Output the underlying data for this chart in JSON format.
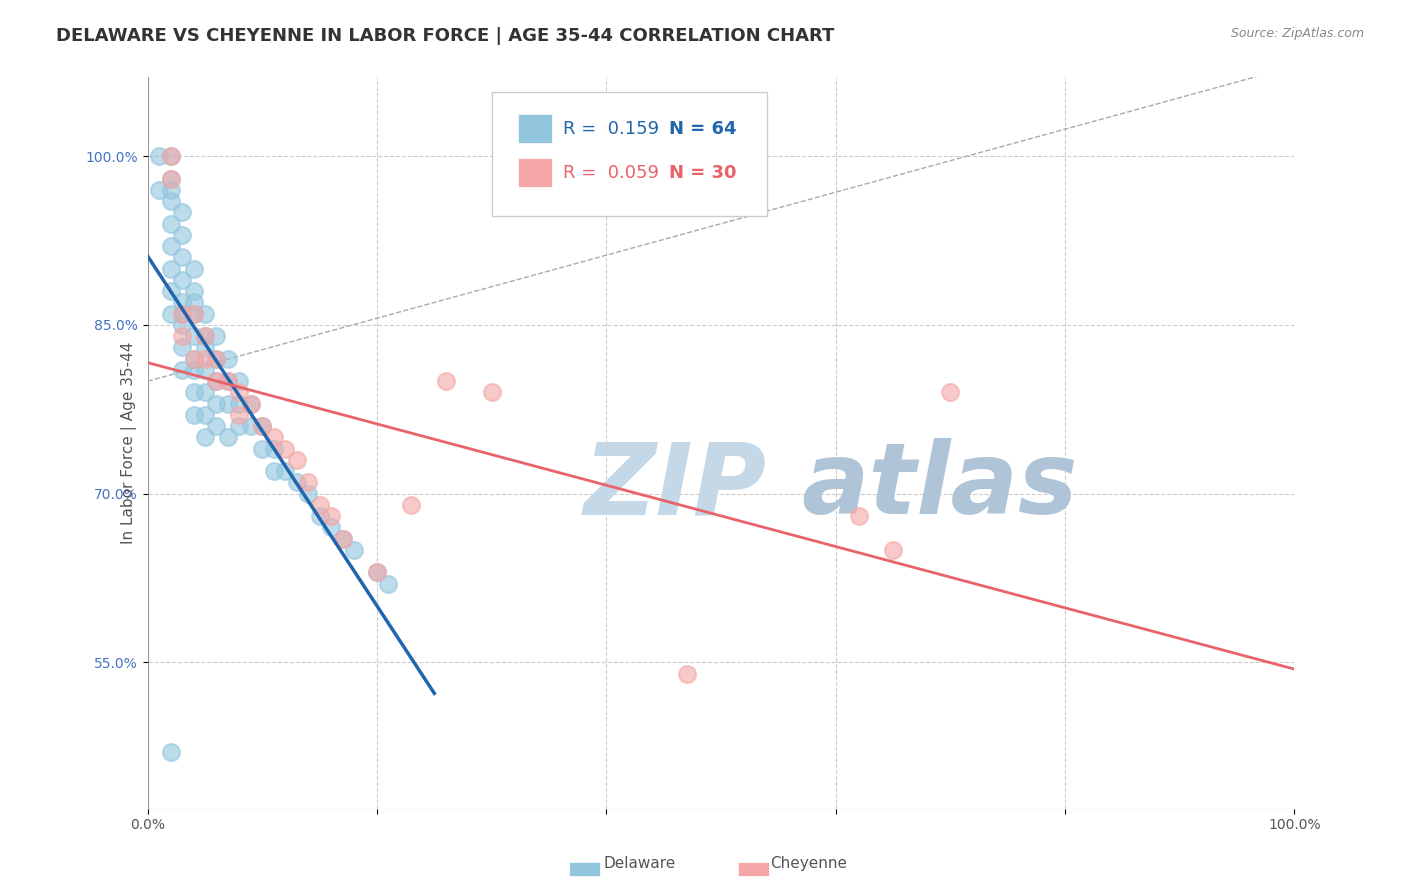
{
  "title": "DELAWARE VS CHEYENNE IN LABOR FORCE | AGE 35-44 CORRELATION CHART",
  "source_text": "Source: ZipAtlas.com",
  "ylabel": "In Labor Force | Age 35-44",
  "xlim": [
    0.0,
    1.0
  ],
  "ylim": [
    0.42,
    1.07
  ],
  "xtick_positions": [
    0.0,
    0.2,
    0.4,
    0.6,
    0.8,
    1.0
  ],
  "xticklabels": [
    "0.0%",
    "",
    "",
    "",
    "",
    "100.0%"
  ],
  "ytick_positions": [
    0.55,
    0.7,
    0.85,
    1.0
  ],
  "yticklabels": [
    "55.0%",
    "70.0%",
    "85.0%",
    "100.0%"
  ],
  "delaware_color": "#92c5de",
  "cheyenne_color": "#f4a6a6",
  "delaware_line_color": "#2166ac",
  "cheyenne_line_color": "#e8636a",
  "ref_line_color": "#aaaaaa",
  "grid_color": "#cccccc",
  "background_color": "#ffffff",
  "watermark_zip": "ZIP",
  "watermark_atlas": "atlas",
  "watermark_color_zip": "#c5d8e8",
  "watermark_color_atlas": "#b0c4d8",
  "title_fontsize": 13,
  "axis_label_fontsize": 11,
  "tick_fontsize": 10,
  "ytick_color": "#4472c4",
  "xtick_color": "#555555",
  "delaware_x": [
    0.01,
    0.01,
    0.02,
    0.02,
    0.02,
    0.02,
    0.02,
    0.02,
    0.02,
    0.02,
    0.02,
    0.03,
    0.03,
    0.03,
    0.03,
    0.03,
    0.03,
    0.03,
    0.03,
    0.03,
    0.04,
    0.04,
    0.04,
    0.04,
    0.04,
    0.04,
    0.04,
    0.04,
    0.04,
    0.05,
    0.05,
    0.05,
    0.05,
    0.05,
    0.05,
    0.05,
    0.06,
    0.06,
    0.06,
    0.06,
    0.06,
    0.07,
    0.07,
    0.07,
    0.07,
    0.08,
    0.08,
    0.08,
    0.09,
    0.09,
    0.1,
    0.1,
    0.11,
    0.11,
    0.12,
    0.13,
    0.14,
    0.15,
    0.16,
    0.17,
    0.18,
    0.2,
    0.21,
    0.02
  ],
  "delaware_y": [
    1.0,
    0.97,
    1.0,
    0.98,
    0.97,
    0.96,
    0.94,
    0.92,
    0.9,
    0.88,
    0.86,
    0.95,
    0.93,
    0.91,
    0.89,
    0.87,
    0.86,
    0.85,
    0.83,
    0.81,
    0.9,
    0.88,
    0.87,
    0.86,
    0.84,
    0.82,
    0.81,
    0.79,
    0.77,
    0.86,
    0.84,
    0.83,
    0.81,
    0.79,
    0.77,
    0.75,
    0.84,
    0.82,
    0.8,
    0.78,
    0.76,
    0.82,
    0.8,
    0.78,
    0.75,
    0.8,
    0.78,
    0.76,
    0.78,
    0.76,
    0.76,
    0.74,
    0.74,
    0.72,
    0.72,
    0.71,
    0.7,
    0.68,
    0.67,
    0.66,
    0.65,
    0.63,
    0.62,
    0.47
  ],
  "cheyenne_x": [
    0.02,
    0.02,
    0.03,
    0.03,
    0.04,
    0.04,
    0.05,
    0.05,
    0.06,
    0.06,
    0.07,
    0.08,
    0.08,
    0.09,
    0.1,
    0.11,
    0.12,
    0.13,
    0.14,
    0.15,
    0.16,
    0.17,
    0.2,
    0.23,
    0.26,
    0.3,
    0.47,
    0.62,
    0.65,
    0.7
  ],
  "cheyenne_y": [
    1.0,
    0.98,
    0.86,
    0.84,
    0.86,
    0.82,
    0.84,
    0.82,
    0.82,
    0.8,
    0.8,
    0.79,
    0.77,
    0.78,
    0.76,
    0.75,
    0.74,
    0.73,
    0.71,
    0.69,
    0.68,
    0.66,
    0.63,
    0.69,
    0.8,
    0.79,
    0.54,
    0.68,
    0.65,
    0.79
  ],
  "legend_R_del": "R =  0.159",
  "legend_N_del": "N = 64",
  "legend_R_che": "R =  0.059",
  "legend_N_che": "N = 30",
  "bottom_label_delaware": "Delaware",
  "bottom_label_cheyenne": "Cheyenne"
}
